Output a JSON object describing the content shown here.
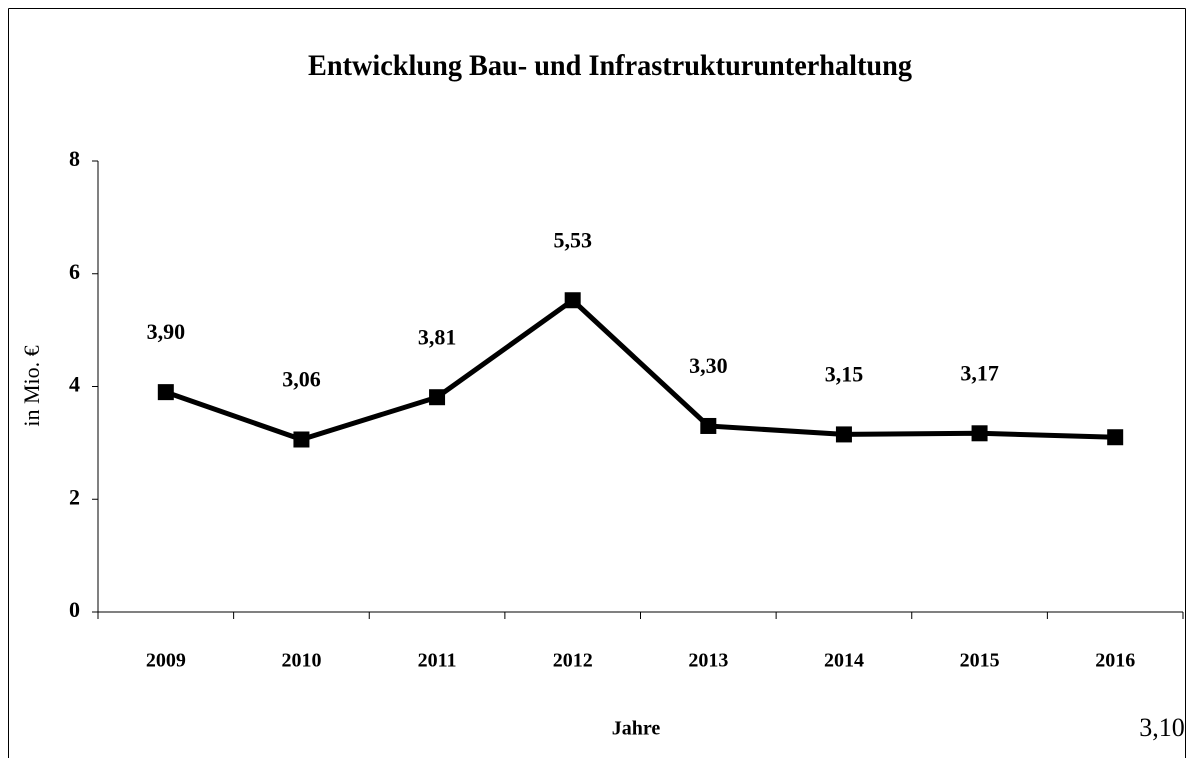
{
  "chart_data": {
    "type": "line",
    "title": "Entwicklung Bau- und Infrastrukturunterhaltung",
    "x_label": "Jahre",
    "y_label": "in Mio. €",
    "categories": [
      "2009",
      "2010",
      "2011",
      "2012",
      "2013",
      "2014",
      "2015",
      "2016"
    ],
    "series": [
      {
        "name": "Bau- und Infrastrukturunterhaltung",
        "color": "#000000",
        "values": [
          3.9,
          3.06,
          3.81,
          5.53,
          3.3,
          3.15,
          3.17,
          3.1
        ],
        "value_labels": [
          "3,90",
          "3,06",
          "3,81",
          "5,53",
          "3,30",
          "3,15",
          "3,17",
          "3,10"
        ]
      }
    ],
    "ylim": [
      0,
      8
    ],
    "yticks": [
      0,
      2,
      4,
      6,
      8
    ],
    "grid": false
  }
}
